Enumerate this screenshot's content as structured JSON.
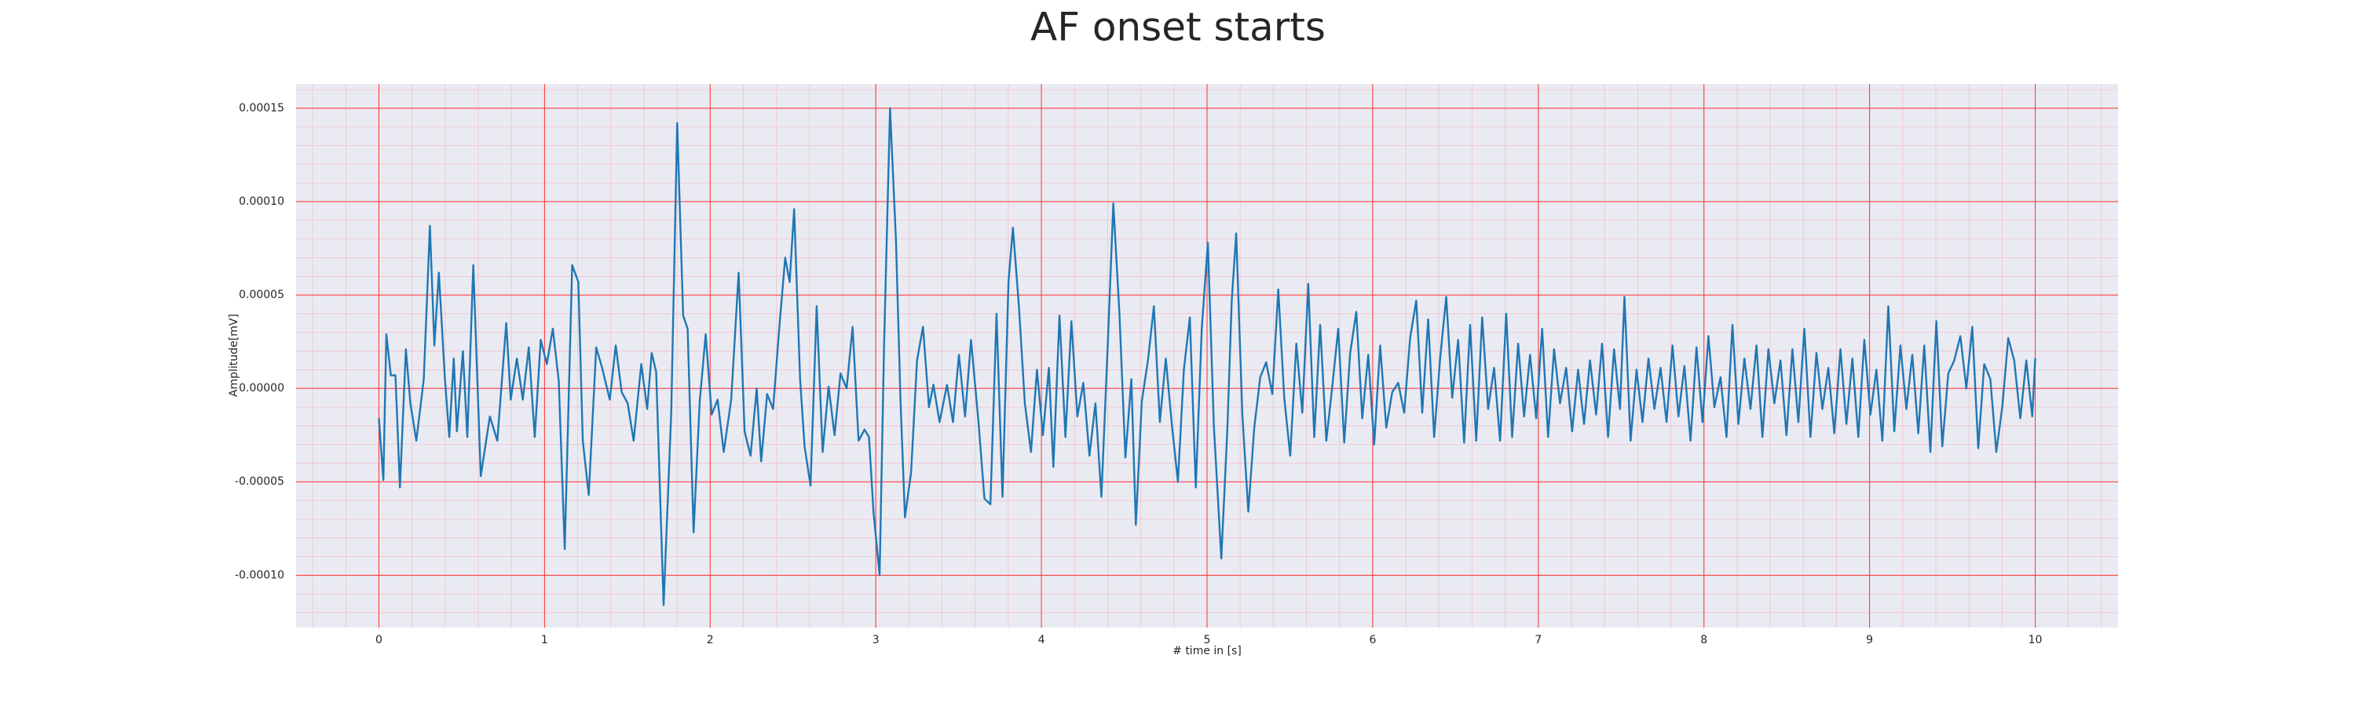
{
  "chart_data": {
    "type": "line",
    "title": "AF onset starts",
    "xlabel": "# time in [s]",
    "ylabel": "Amplitude[mV]",
    "color": "#1f77b4",
    "grid": true,
    "minor_grid": true,
    "xlim": [
      -0.5,
      10.5
    ],
    "xticks": [
      0,
      1,
      2,
      3,
      4,
      5,
      6,
      7,
      8,
      9,
      10
    ],
    "ylim": [
      -0.000128,
      0.000163
    ],
    "yticks": [
      {
        "value": -0.0001,
        "label": "-0.00010"
      },
      {
        "value": -5e-05,
        "label": "-0.00005"
      },
      {
        "value": 0,
        "label": "0.00000"
      },
      {
        "value": 5e-05,
        "label": "0.00005"
      },
      {
        "value": 0.0001,
        "label": "0.00010"
      },
      0.00015
    ],
    "x": [
      0.0,
      0.027,
      0.045,
      0.072,
      0.1,
      0.127,
      0.163,
      0.19,
      0.226,
      0.271,
      0.308,
      0.335,
      0.362,
      0.398,
      0.425,
      0.452,
      0.471,
      0.507,
      0.534,
      0.57,
      0.615,
      0.67,
      0.715,
      0.769,
      0.796,
      0.833,
      0.869,
      0.905,
      0.941,
      0.977,
      1.014,
      1.05,
      1.086,
      1.122,
      1.167,
      1.204,
      1.231,
      1.267,
      1.312,
      1.348,
      1.394,
      1.43,
      1.466,
      1.502,
      1.538,
      1.584,
      1.62,
      1.647,
      1.674,
      1.719,
      1.765,
      1.801,
      1.837,
      1.864,
      1.9,
      1.937,
      1.973,
      2.009,
      2.045,
      2.082,
      2.127,
      2.172,
      2.208,
      2.244,
      2.281,
      2.308,
      2.344,
      2.38,
      2.416,
      2.453,
      2.48,
      2.507,
      2.543,
      2.57,
      2.606,
      2.643,
      2.679,
      2.715,
      2.751,
      2.787,
      2.824,
      2.86,
      2.896,
      2.932,
      2.959,
      2.986,
      3.023,
      3.05,
      3.086,
      3.122,
      3.149,
      3.176,
      3.213,
      3.249,
      3.285,
      3.321,
      3.348,
      3.385,
      3.43,
      3.466,
      3.502,
      3.539,
      3.575,
      3.62,
      3.656,
      3.692,
      3.729,
      3.765,
      3.801,
      3.828,
      3.864,
      3.9,
      3.937,
      3.973,
      4.009,
      4.045,
      4.072,
      4.109,
      4.145,
      4.181,
      4.217,
      4.253,
      4.29,
      4.326,
      4.362,
      4.398,
      4.434,
      4.471,
      4.507,
      4.543,
      4.57,
      4.606,
      4.643,
      4.679,
      4.715,
      4.751,
      4.787,
      4.824,
      4.86,
      4.896,
      4.932,
      4.968,
      5.005,
      5.041,
      5.086,
      5.122,
      5.149,
      5.176,
      5.213,
      5.249,
      5.285,
      5.321,
      5.357,
      5.394,
      5.43,
      5.466,
      5.502,
      5.539,
      5.575,
      5.611,
      5.647,
      5.683,
      5.72,
      5.756,
      5.792,
      5.828,
      5.864,
      5.901,
      5.937,
      5.973,
      6.009,
      6.045,
      6.082,
      6.118,
      6.154,
      6.19,
      6.226,
      6.263,
      6.299,
      6.335,
      6.371,
      6.407,
      6.444,
      6.48,
      6.516,
      6.552,
      6.588,
      6.625,
      6.661,
      6.697,
      6.733,
      6.769,
      6.806,
      6.842,
      6.878,
      6.914,
      6.95,
      6.987,
      7.023,
      7.059,
      7.095,
      7.131,
      7.168,
      7.204,
      7.24,
      7.276,
      7.312,
      7.349,
      7.385,
      7.421,
      7.457,
      7.493,
      7.52,
      7.557,
      7.593,
      7.629,
      7.665,
      7.701,
      7.738,
      7.774,
      7.81,
      7.846,
      7.882,
      7.919,
      7.955,
      7.991,
      8.027,
      8.063,
      8.1,
      8.136,
      8.172,
      8.208,
      8.244,
      8.281,
      8.317,
      8.353,
      8.389,
      8.425,
      8.462,
      8.498,
      8.534,
      8.57,
      8.606,
      8.643,
      8.679,
      8.715,
      8.751,
      8.787,
      8.824,
      8.86,
      8.896,
      8.932,
      8.968,
      9.005,
      9.041,
      9.077,
      9.113,
      9.149,
      9.186,
      9.222,
      9.258,
      9.294,
      9.33,
      9.367,
      9.403,
      9.439,
      9.475,
      9.511,
      9.548,
      9.584,
      9.62,
      9.656,
      9.692,
      9.729,
      9.765,
      9.801,
      9.837,
      9.873,
      9.91,
      9.946,
      9.982,
      10.0
    ],
    "values": [
      -1.6e-05,
      -4.9e-05,
      2.9e-05,
      7e-06,
      7e-06,
      -5.3e-05,
      2.1e-05,
      -8e-06,
      -2.8e-05,
      5e-06,
      8.7e-05,
      2.3e-05,
      6.2e-05,
      6e-06,
      -2.6e-05,
      1.6e-05,
      -2.3e-05,
      2e-05,
      -2.6e-05,
      6.6e-05,
      -4.7e-05,
      -1.5e-05,
      -2.8e-05,
      3.5e-05,
      -6e-06,
      1.6e-05,
      -6e-06,
      2.2e-05,
      -2.6e-05,
      2.6e-05,
      1.3e-05,
      3.2e-05,
      4e-06,
      -8.6e-05,
      6.6e-05,
      5.7e-05,
      -2.8e-05,
      -5.7e-05,
      2.2e-05,
      1.1e-05,
      -6e-06,
      2.3e-05,
      -2e-06,
      -8e-06,
      -2.8e-05,
      1.3e-05,
      -1.1e-05,
      1.9e-05,
      9e-06,
      -0.000116,
      -1.3e-05,
      0.000142,
      3.9e-05,
      3.2e-05,
      -7.7e-05,
      -7e-06,
      2.9e-05,
      -1.4e-05,
      -6e-06,
      -3.4e-05,
      -6e-06,
      6.2e-05,
      -2.3e-05,
      -3.6e-05,
      0,
      -3.9e-05,
      -3e-06,
      -1.1e-05,
      3.1e-05,
      7e-05,
      5.7e-05,
      9.6e-05,
      5e-06,
      -3.1e-05,
      -5.2e-05,
      4.4e-05,
      -3.4e-05,
      1e-06,
      -2.5e-05,
      8e-06,
      0,
      3.3e-05,
      -2.8e-05,
      -2.2e-05,
      -2.6e-05,
      -6.6e-05,
      -0.0001,
      2.3e-05,
      0.00015,
      7.9e-05,
      -6e-06,
      -6.9e-05,
      -4.5e-05,
      1.5e-05,
      3.3e-05,
      -1e-05,
      2e-06,
      -1.8e-05,
      2e-06,
      -1.8e-05,
      1.8e-05,
      -1.5e-05,
      2.6e-05,
      -1.8e-05,
      -5.9e-05,
      -6.2e-05,
      4e-05,
      -5.8e-05,
      5.7e-05,
      8.6e-05,
      4.4e-05,
      -8e-06,
      -3.4e-05,
      1e-05,
      -2.5e-05,
      1.1e-05,
      -4.2e-05,
      3.9e-05,
      -2.6e-05,
      3.6e-05,
      -1.5e-05,
      3e-06,
      -3.6e-05,
      -8e-06,
      -5.8e-05,
      1.8e-05,
      9.9e-05,
      4e-05,
      -3.7e-05,
      5e-06,
      -7.3e-05,
      -7e-06,
      1.5e-05,
      4.4e-05,
      -1.8e-05,
      1.6e-05,
      -1.9e-05,
      -5e-05,
      1e-05,
      3.8e-05,
      -5.3e-05,
      3.2e-05,
      7.8e-05,
      -2e-05,
      -9.1e-05,
      -2.3e-05,
      4.7e-05,
      8.3e-05,
      -1.4e-05,
      -6.6e-05,
      -2.1e-05,
      6e-06,
      1.4e-05,
      -3e-06,
      5.3e-05,
      -5e-06,
      -3.6e-05,
      2.4e-05,
      -1.3e-05,
      5.6e-05,
      -2.6e-05,
      3.4e-05,
      -2.8e-05,
      1e-06,
      3.2e-05,
      -2.9e-05,
      1.9e-05,
      4.1e-05,
      -1.6e-05,
      1.8e-05,
      -3e-05,
      2.3e-05,
      -2.1e-05,
      -2e-06,
      3e-06,
      -1.3e-05,
      2.7e-05,
      4.7e-05,
      -1.3e-05,
      3.7e-05,
      -2.6e-05,
      1.6e-05,
      4.9e-05,
      -5e-06,
      2.6e-05,
      -2.9e-05,
      3.4e-05,
      -2.8e-05,
      3.8e-05,
      -1.1e-05,
      1.1e-05,
      -2.8e-05,
      4e-05,
      -2.6e-05,
      2.4e-05,
      -1.5e-05,
      1.8e-05,
      -1.6e-05,
      3.2e-05,
      -2.6e-05,
      2.1e-05,
      -8e-06,
      1.1e-05,
      -2.3e-05,
      1e-05,
      -1.9e-05,
      1.5e-05,
      -1.4e-05,
      2.4e-05,
      -2.6e-05,
      2.1e-05,
      -1.1e-05,
      4.9e-05,
      -2.8e-05,
      1e-05,
      -1.8e-05,
      1.6e-05,
      -1.1e-05,
      1.1e-05,
      -1.8e-05,
      2.3e-05,
      -1.5e-05,
      1.2e-05,
      -2.8e-05,
      2.2e-05,
      -1.8e-05,
      2.8e-05,
      -1e-05,
      6e-06,
      -2.6e-05,
      3.4e-05,
      -1.9e-05,
      1.6e-05,
      -1.1e-05,
      2.3e-05,
      -2.6e-05,
      2.1e-05,
      -8e-06,
      1.5e-05,
      -2.5e-05,
      2.1e-05,
      -1.8e-05,
      3.2e-05,
      -2.6e-05,
      1.9e-05,
      -1.1e-05,
      1.1e-05,
      -2.4e-05,
      2.1e-05,
      -1.9e-05,
      1.6e-05,
      -2.6e-05,
      2.6e-05,
      -1.4e-05,
      1e-05,
      -2.8e-05,
      4.4e-05,
      -2.3e-05,
      2.3e-05,
      -1.1e-05,
      1.8e-05,
      -2.4e-05,
      2.3e-05,
      -3.4e-05,
      3.6e-05,
      -3.1e-05,
      8e-06,
      1.5e-05,
      2.8e-05,
      0,
      3.3e-05,
      -3.2e-05,
      1.3e-05,
      5e-06,
      -3.4e-05,
      -1e-05,
      2.7e-05,
      1.5e-05,
      -1.6e-05,
      1.5e-05,
      -1.5e-05,
      1.6e-05
    ]
  }
}
